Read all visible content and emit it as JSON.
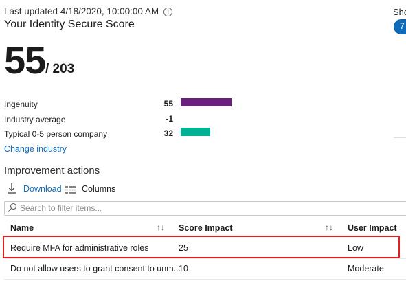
{
  "header": {
    "last_updated": "Last updated 4/18/2020, 10:00:00 AM",
    "info_icon": "i",
    "title": "Your Identity Secure Score",
    "score": "55",
    "score_max": "/ 203",
    "show_label": "Sho",
    "toggle_text": "7"
  },
  "comparison": {
    "rows": [
      {
        "label": "Ingenuity",
        "value": "55",
        "bar_fraction": 0.2709,
        "color": "#6b1f7c"
      },
      {
        "label": "Industry average",
        "value": "-1",
        "bar_fraction": 0,
        "color": "#ffffff"
      },
      {
        "label": "Typical 0-5 person company",
        "value": "32",
        "bar_fraction": 0.1576,
        "color": "#00b294"
      }
    ],
    "change_industry": "Change industry"
  },
  "improvement": {
    "title": "Improvement actions",
    "download_icon": "download-icon",
    "download_label": "Download",
    "columns_icon": "columns-icon",
    "columns_label": "Columns",
    "filter_placeholder": "Search to filter items...",
    "filter_icon": "search-icon"
  },
  "table": {
    "headers": [
      "Name",
      "Score Impact",
      "User Impact"
    ],
    "sort_icon": "↑↓",
    "rows": [
      {
        "name": "Require MFA for administrative roles",
        "score": "25",
        "impact": "Low"
      },
      {
        "name": "Do not allow users to grant consent to unm...",
        "score": "10",
        "impact": "Moderate"
      }
    ]
  },
  "colors": {
    "accent": "#0f6cbd",
    "highlight": "#e02020"
  }
}
